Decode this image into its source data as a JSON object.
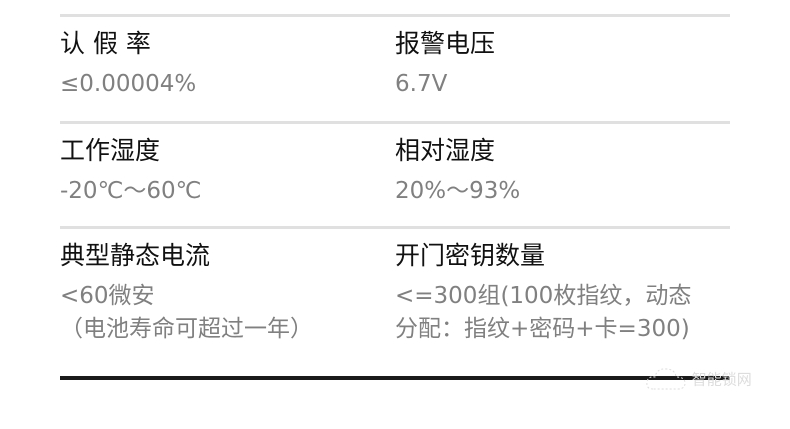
{
  "specs": [
    {
      "label": "认 假 率",
      "value": [
        "≤0.00004%"
      ]
    },
    {
      "label": "报警电压",
      "value": [
        "6.7V"
      ]
    },
    {
      "label": "工作湿度",
      "value": [
        "-20℃～60℃"
      ]
    },
    {
      "label": "相对湿度",
      "value": [
        "20%～93%"
      ]
    },
    {
      "label": "典型静态电流",
      "value": [
        "<60微安",
        "（电池寿命可超过一年）"
      ]
    },
    {
      "label": "开门密钥数量",
      "value": [
        "<=300组(100枚指纹，动态",
        "分配：指纹+密码+卡=300)"
      ]
    }
  ],
  "watermark": {
    "text": "智能锁网",
    "icon": "cloud-icon"
  }
}
